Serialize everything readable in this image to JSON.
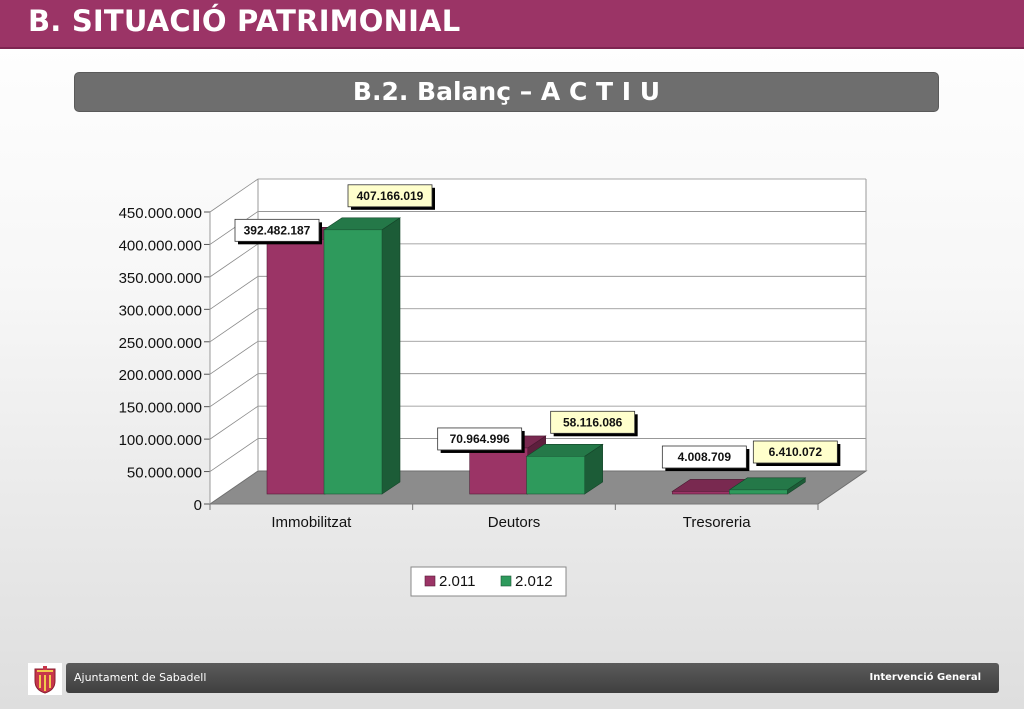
{
  "header": {
    "title": "B. SITUACIÓ PATRIMONIAL"
  },
  "subtitle": "B.2. Balanç – A C T I U",
  "footer": {
    "organization": "Ajuntament de Sabadell",
    "department": "Intervenció General"
  },
  "logo": {
    "icon": "coat-of-arms-icon"
  },
  "colors": {
    "series_2011": "#9b3466",
    "series_2012": "#2e9a5c",
    "header": "#9b3466"
  },
  "chart_data": {
    "type": "bar",
    "categories": [
      "Immobilitzat",
      "Deutors",
      "Tresoreria"
    ],
    "series": [
      {
        "name": "2.011",
        "values": [
          392482187,
          70964996,
          4008709
        ],
        "labels": [
          "392.482.187",
          "70.964.996",
          "4.008.709"
        ]
      },
      {
        "name": "2.012",
        "values": [
          407166019,
          58116086,
          6410072
        ],
        "labels": [
          "407.166.019",
          "58.116.086",
          "6.410.072"
        ]
      }
    ],
    "y_ticks": [
      "0",
      "50.000.000",
      "100.000.000",
      "150.000.000",
      "200.000.000",
      "250.000.000",
      "300.000.000",
      "350.000.000",
      "400.000.000",
      "450.000.000"
    ],
    "ylim": [
      0,
      450000000
    ],
    "grid": true,
    "legend_position": "bottom",
    "style": "3d"
  }
}
